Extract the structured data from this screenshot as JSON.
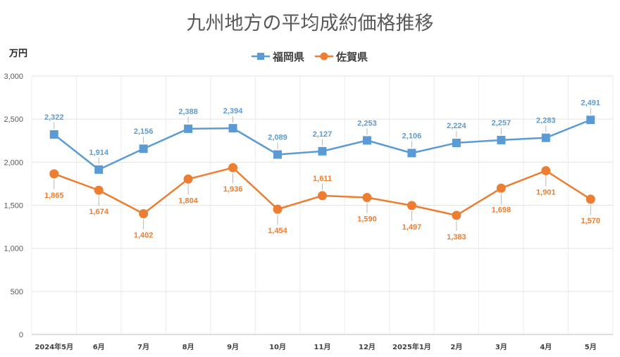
{
  "chart_data": {
    "type": "line",
    "title": "九州地方の平均成約価格推移",
    "ylabel": "万円",
    "xlabel": "",
    "ylim": [
      0,
      3000
    ],
    "yticks": [
      0,
      500,
      1000,
      1500,
      2000,
      2500,
      3000
    ],
    "ytick_labels": [
      "0",
      "500",
      "1,000",
      "1,500",
      "2,000",
      "2,500",
      "3,000"
    ],
    "grid": true,
    "legend_position": "top",
    "categories": [
      "2024年5月",
      "6月",
      "7月",
      "8月",
      "9月",
      "10月",
      "11月",
      "12月",
      "2025年1月",
      "2月",
      "3月",
      "4月",
      "5月"
    ],
    "series": [
      {
        "name": "福岡県",
        "marker": "square",
        "color": "#5B9BD5",
        "values": [
          2322,
          1914,
          2156,
          2388,
          2394,
          2089,
          2127,
          2253,
          2106,
          2224,
          2257,
          2283,
          2491
        ],
        "labels": [
          "2,322",
          "1,914",
          "2,156",
          "2,388",
          "2,394",
          "2,089",
          "2,127",
          "2,253",
          "2,106",
          "2,224",
          "2,257",
          "2,283",
          "2,491"
        ]
      },
      {
        "name": "佐賀県",
        "marker": "circle",
        "color": "#ED7D31",
        "values": [
          1865,
          1674,
          1402,
          1804,
          1936,
          1454,
          1611,
          1590,
          1497,
          1383,
          1698,
          1901,
          1570
        ],
        "labels": [
          "1,865",
          "1,674",
          "1,402",
          "1,804",
          "1,936",
          "1,454",
          "1,611",
          "1,590",
          "1,497",
          "1,383",
          "1,698",
          "1,901",
          "1,570"
        ]
      }
    ]
  }
}
